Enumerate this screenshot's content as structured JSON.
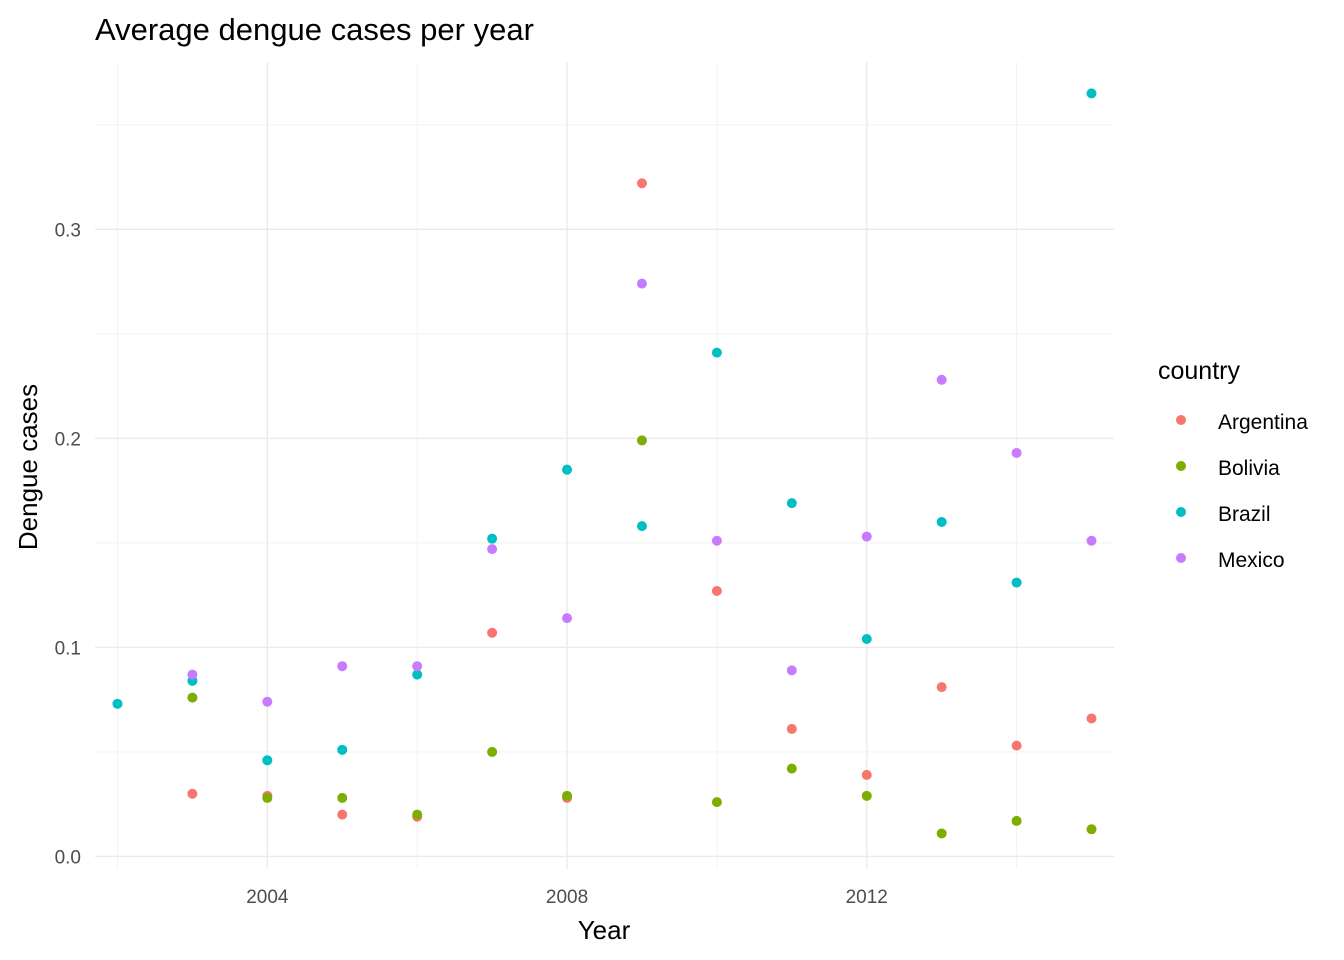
{
  "chart_data": {
    "type": "scatter",
    "title": "Average dengue cases per year",
    "xlabel": "Year",
    "ylabel": "Dengue cases",
    "xlim": [
      2001.7,
      2015.3
    ],
    "ylim": [
      -0.006,
      0.38
    ],
    "x_ticks": [
      2004,
      2008,
      2012
    ],
    "x_minor": [
      2002,
      2006,
      2010,
      2014
    ],
    "y_ticks": [
      0.0,
      0.1,
      0.2,
      0.3
    ],
    "y_tick_labels": [
      "0.0",
      "0.1",
      "0.2",
      "0.3"
    ],
    "y_minor": [
      0.05,
      0.15,
      0.25,
      0.35
    ],
    "grid": true,
    "legend": {
      "title": "country",
      "position": "right"
    },
    "series": [
      {
        "name": "Argentina",
        "color": "#F8766D",
        "points": [
          [
            2003,
            0.03
          ],
          [
            2004,
            0.029
          ],
          [
            2005,
            0.02
          ],
          [
            2006,
            0.019
          ],
          [
            2007,
            0.107
          ],
          [
            2008,
            0.028
          ],
          [
            2009,
            0.322
          ],
          [
            2010,
            0.127
          ],
          [
            2011,
            0.061
          ],
          [
            2012,
            0.039
          ],
          [
            2013,
            0.081
          ],
          [
            2014,
            0.053
          ],
          [
            2015,
            0.066
          ]
        ]
      },
      {
        "name": "Bolivia",
        "color": "#7CAE00",
        "points": [
          [
            2003,
            0.076
          ],
          [
            2004,
            0.028
          ],
          [
            2005,
            0.028
          ],
          [
            2006,
            0.02
          ],
          [
            2007,
            0.05
          ],
          [
            2008,
            0.029
          ],
          [
            2009,
            0.199
          ],
          [
            2010,
            0.026
          ],
          [
            2011,
            0.042
          ],
          [
            2012,
            0.029
          ],
          [
            2013,
            0.011
          ],
          [
            2014,
            0.017
          ],
          [
            2015,
            0.013
          ]
        ]
      },
      {
        "name": "Brazil",
        "color": "#00BFC4",
        "points": [
          [
            2002,
            0.073
          ],
          [
            2003,
            0.084
          ],
          [
            2004,
            0.046
          ],
          [
            2005,
            0.051
          ],
          [
            2006,
            0.087
          ],
          [
            2007,
            0.152
          ],
          [
            2008,
            0.185
          ],
          [
            2009,
            0.158
          ],
          [
            2010,
            0.241
          ],
          [
            2011,
            0.169
          ],
          [
            2012,
            0.104
          ],
          [
            2013,
            0.16
          ],
          [
            2014,
            0.131
          ],
          [
            2015,
            0.365
          ]
        ]
      },
      {
        "name": "Mexico",
        "color": "#C77CFF",
        "points": [
          [
            2003,
            0.087
          ],
          [
            2004,
            0.074
          ],
          [
            2005,
            0.091
          ],
          [
            2006,
            0.091
          ],
          [
            2007,
            0.147
          ],
          [
            2008,
            0.114
          ],
          [
            2009,
            0.274
          ],
          [
            2010,
            0.151
          ],
          [
            2011,
            0.089
          ],
          [
            2012,
            0.153
          ],
          [
            2013,
            0.228
          ],
          [
            2014,
            0.193
          ],
          [
            2015,
            0.151
          ]
        ]
      }
    ]
  }
}
